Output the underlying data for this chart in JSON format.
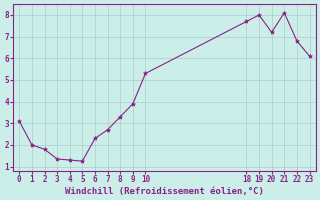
{
  "x": [
    0,
    1,
    2,
    3,
    4,
    5,
    6,
    7,
    8,
    9,
    10,
    18,
    19,
    20,
    21,
    22,
    23
  ],
  "y": [
    3.1,
    2.0,
    1.8,
    1.35,
    1.3,
    1.25,
    2.3,
    2.7,
    3.3,
    3.9,
    5.3,
    7.7,
    8.0,
    7.2,
    8.1,
    6.8,
    6.1
  ],
  "line_color": "#882288",
  "marker": "*",
  "marker_size": 3,
  "background_color": "#cceee8",
  "grid_color": "#aacccc",
  "xlabel": "Windchill (Refroidissement éolien,°C)",
  "xlim": [
    -0.5,
    23.5
  ],
  "ylim": [
    0.8,
    8.5
  ],
  "xticks": [
    0,
    1,
    2,
    3,
    4,
    5,
    6,
    7,
    8,
    9,
    10,
    18,
    19,
    20,
    21,
    22,
    23
  ],
  "yticks": [
    1,
    2,
    3,
    4,
    5,
    6,
    7,
    8
  ],
  "tick_color": "#882288",
  "label_color": "#882288",
  "spine_color": "#882288",
  "axis_bg": "#cceee8",
  "tick_fontsize": 5.5,
  "xlabel_fontsize": 6.5
}
